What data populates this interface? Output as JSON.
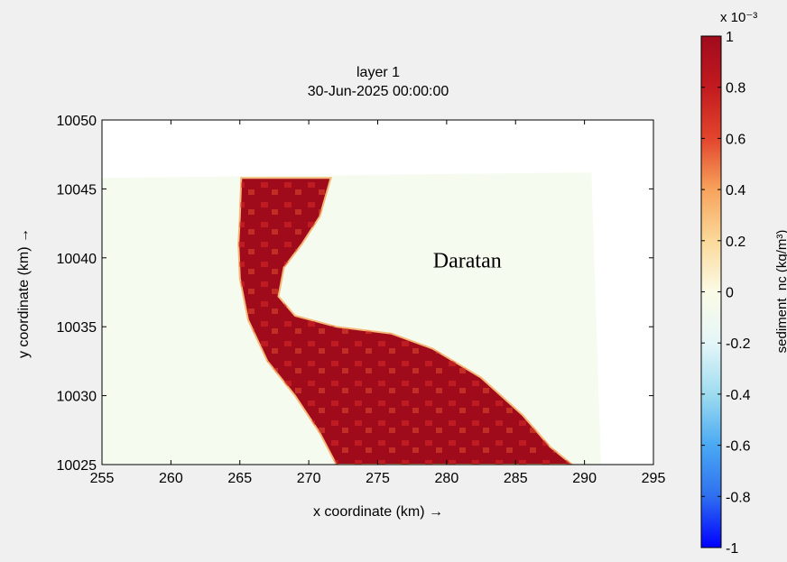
{
  "chart_data": {
    "type": "heatmap",
    "title": [
      "layer 1",
      "30-Jun-2025 00:00:00"
    ],
    "xlabel": "x coordinate (km) →",
    "ylabel": "y coordinate (km) →",
    "xlim": [
      255,
      295
    ],
    "ylim": [
      10025,
      10050
    ],
    "xticks": [
      "255",
      "260",
      "265",
      "270",
      "275",
      "280",
      "285",
      "290",
      "295"
    ],
    "yticks": [
      "10025",
      "10030",
      "10035",
      "10040",
      "10045",
      "10050"
    ],
    "grid": false,
    "annotation": {
      "text": "Daratan",
      "x": 281.5,
      "y": 10039.3
    },
    "land_color": "#f6fbef",
    "background_color": "#f0f0f0",
    "domain_outline": [
      [
        255,
        10045.8
      ],
      [
        290.5,
        10046.2
      ],
      [
        291.2,
        10025
      ],
      [
        255,
        10025
      ]
    ],
    "channel": {
      "left_bank": [
        [
          265.1,
          10045.8
        ],
        [
          265.0,
          10043
        ],
        [
          264.9,
          10041
        ],
        [
          265.0,
          10038.5
        ],
        [
          265.6,
          10035.5
        ],
        [
          267.0,
          10032.5
        ],
        [
          269.0,
          10030
        ],
        [
          270.8,
          10027.3
        ],
        [
          272.0,
          10025
        ]
      ],
      "right_bank": [
        [
          271.6,
          10045.8
        ],
        [
          270.8,
          10043
        ],
        [
          269.5,
          10041
        ],
        [
          268.2,
          10039.3
        ],
        [
          267.8,
          10037.2
        ],
        [
          269.0,
          10035.8
        ],
        [
          272.0,
          10035
        ],
        [
          276.0,
          10034.5
        ],
        [
          279.0,
          10033.4
        ],
        [
          282.5,
          10031.3
        ],
        [
          285.5,
          10028.6
        ],
        [
          287.5,
          10026.3
        ],
        [
          289.1,
          10025
        ]
      ],
      "fill_value": 1.0
    },
    "colorbar": {
      "label": "sediment_nc (kg/m³)",
      "multiplier": "x 10⁻³",
      "clim": [
        -1,
        1
      ],
      "ticks": [
        "1",
        "0.8",
        "0.6",
        "0.4",
        "0.2",
        "0",
        "-0.2",
        "-0.4",
        "-0.6",
        "-0.8",
        "-1"
      ],
      "colormap": [
        "#0000ff",
        "#2e6ff0",
        "#4aa9f2",
        "#9edcf0",
        "#e4f6f8",
        "#fbfbe6",
        "#fbd99a",
        "#f7a35c",
        "#e2452c",
        "#c21a1f",
        "#a00b1c"
      ]
    }
  }
}
